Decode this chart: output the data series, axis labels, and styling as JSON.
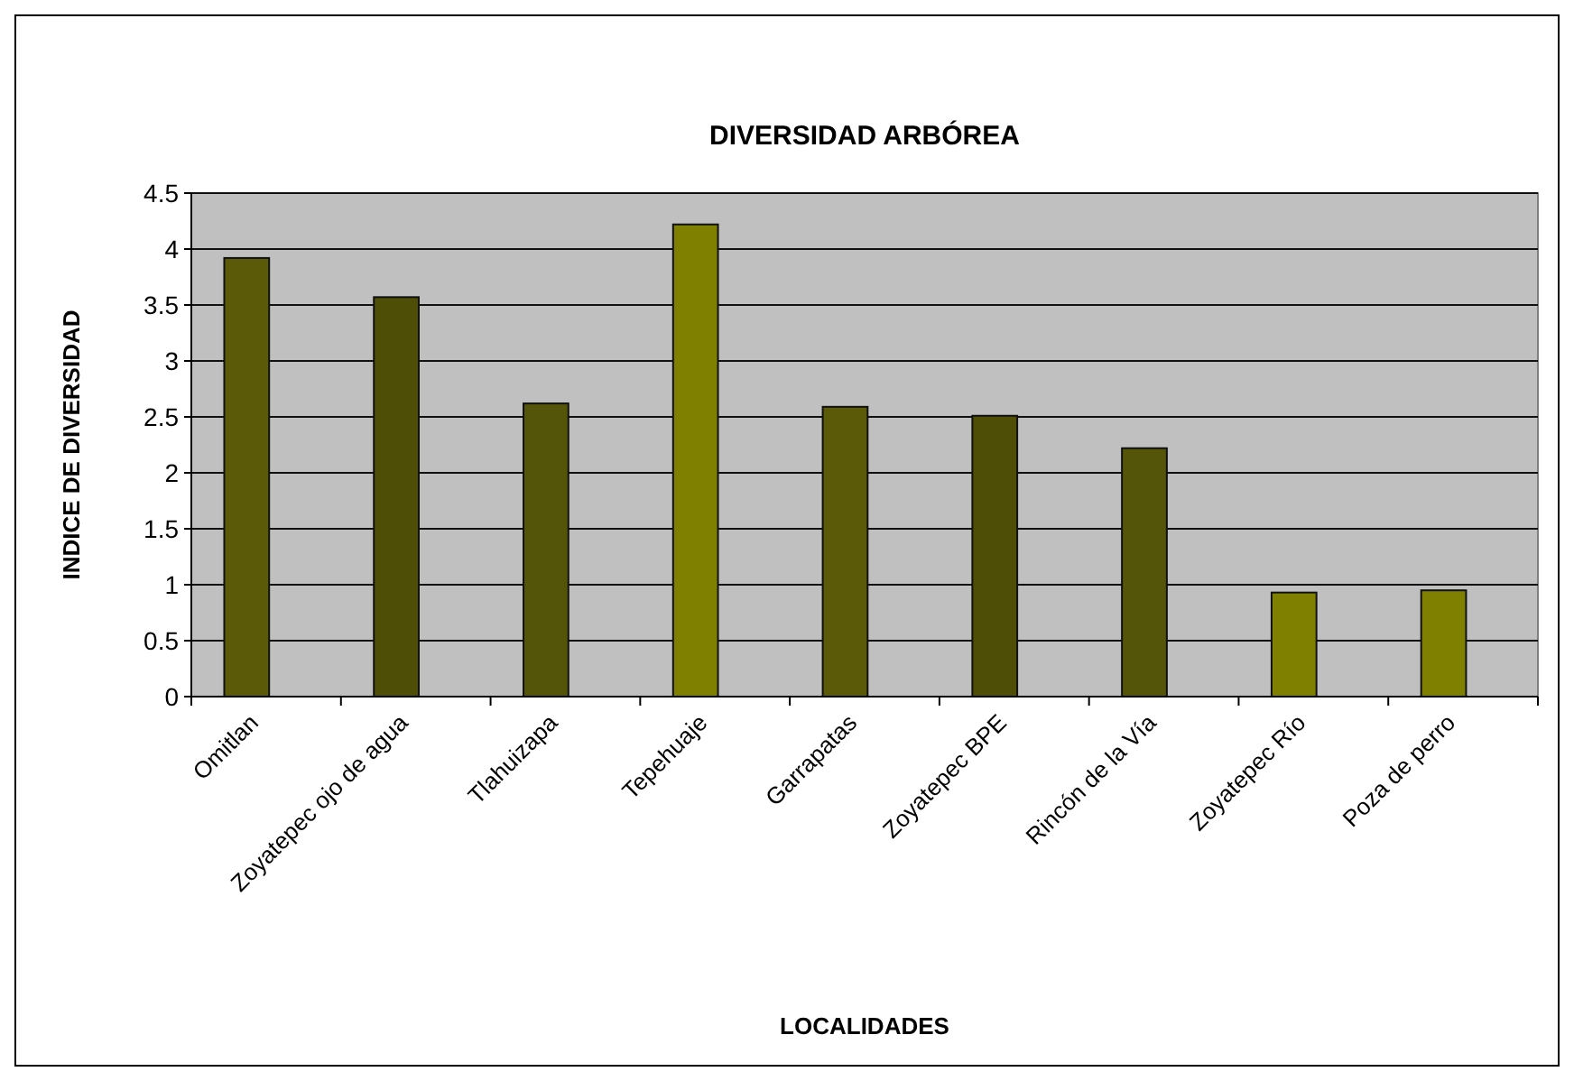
{
  "chart_data": {
    "type": "bar",
    "title": "DIVERSIDAD ARBÓREA",
    "xlabel": "LOCALIDADES",
    "ylabel": "INDICE DE DIVERSIDAD",
    "categories": [
      "Omitlan",
      "Zoyatepec ojo de agua",
      "Tlahuizapa",
      "Tepehuaje",
      "Garrapatas",
      "Zoyatepec BPE",
      "Rincón de la Vía",
      "Zoyatepec Río",
      "Poza de perro"
    ],
    "values": [
      3.92,
      3.57,
      2.62,
      4.22,
      2.59,
      2.51,
      2.22,
      0.93,
      0.95
    ],
    "colors": [
      "#5a5a08",
      "#4e4e06",
      "#55550a",
      "#808000",
      "#5a5a08",
      "#4e4e06",
      "#55550a",
      "#808000",
      "#808000"
    ],
    "ylim": [
      0,
      4.5
    ],
    "yticks": [
      0,
      0.5,
      1,
      1.5,
      2,
      2.5,
      3,
      3.5,
      4,
      4.5
    ],
    "grid": "y"
  }
}
